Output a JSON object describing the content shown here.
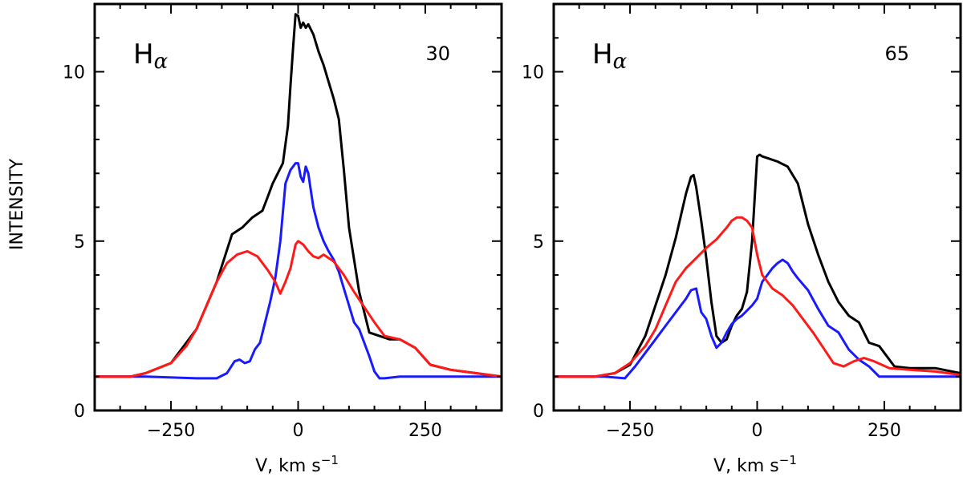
{
  "figure": {
    "ylabel": "INTENSITY",
    "colors": {
      "black": "#000000",
      "blue": "#1a1aff",
      "red": "#ff1a1a"
    }
  },
  "chart_data": [
    {
      "type": "line",
      "title_main": "H",
      "title_sub": "α",
      "corner_label": "30",
      "xlabel_main": "V, km s",
      "xlabel_sup": "−1",
      "xlim": [
        -400,
        400
      ],
      "ylim": [
        0,
        12
      ],
      "xticks": [
        -250,
        0,
        250
      ],
      "xtick_labels": [
        "−250",
        "0",
        "250"
      ],
      "yticks": [
        0,
        5,
        10
      ],
      "ytick_labels": [
        "0",
        "5",
        "10"
      ],
      "series": [
        {
          "name": "black",
          "color": "#000000",
          "x": [
            -400,
            -330,
            -300,
            -250,
            -200,
            -160,
            -130,
            -110,
            -90,
            -70,
            -60,
            -50,
            -40,
            -30,
            -20,
            -15,
            -10,
            -5,
            0,
            5,
            10,
            15,
            20,
            30,
            40,
            50,
            60,
            70,
            80,
            90,
            100,
            120,
            140,
            160,
            180,
            200,
            230,
            260,
            300,
            350,
            400
          ],
          "y": [
            1,
            1,
            1.1,
            1.4,
            2.4,
            3.8,
            5.2,
            5.4,
            5.7,
            5.9,
            6.3,
            6.7,
            7.0,
            7.3,
            8.4,
            9.6,
            10.7,
            11.7,
            11.65,
            11.3,
            11.45,
            11.3,
            11.4,
            11.1,
            10.6,
            10.2,
            9.7,
            9.2,
            8.6,
            7.1,
            5.4,
            3.5,
            2.3,
            2.2,
            2.1,
            2.1,
            1.85,
            1.35,
            1.2,
            1.1,
            1
          ]
        },
        {
          "name": "blue",
          "color": "#1a1aff",
          "x": [
            -400,
            -300,
            -200,
            -160,
            -140,
            -125,
            -115,
            -105,
            -95,
            -85,
            -75,
            -65,
            -55,
            -45,
            -35,
            -25,
            -15,
            -5,
            0,
            5,
            10,
            15,
            20,
            25,
            30,
            40,
            50,
            60,
            70,
            80,
            90,
            100,
            110,
            120,
            130,
            140,
            150,
            160,
            170,
            200,
            300,
            400
          ],
          "y": [
            1,
            1,
            0.95,
            0.95,
            1.1,
            1.45,
            1.5,
            1.4,
            1.45,
            1.8,
            2.0,
            2.6,
            3.2,
            3.9,
            5.0,
            6.7,
            7.1,
            7.3,
            7.3,
            6.9,
            6.75,
            7.2,
            7.0,
            6.5,
            6.0,
            5.4,
            5.0,
            4.7,
            4.45,
            4.1,
            3.6,
            3.1,
            2.6,
            2.4,
            2.0,
            1.6,
            1.15,
            0.95,
            0.95,
            1,
            1,
            1
          ]
        },
        {
          "name": "red",
          "color": "#ff1a1a",
          "x": [
            -400,
            -330,
            -300,
            -250,
            -220,
            -200,
            -180,
            -160,
            -140,
            -120,
            -100,
            -80,
            -60,
            -45,
            -35,
            -25,
            -15,
            -5,
            0,
            10,
            20,
            30,
            40,
            50,
            60,
            70,
            90,
            110,
            130,
            150,
            170,
            200,
            230,
            260,
            300,
            350,
            400
          ],
          "y": [
            1,
            1,
            1.1,
            1.4,
            1.9,
            2.4,
            3.1,
            3.8,
            4.35,
            4.6,
            4.7,
            4.55,
            4.15,
            3.8,
            3.45,
            3.8,
            4.2,
            4.9,
            5.0,
            4.9,
            4.7,
            4.55,
            4.5,
            4.6,
            4.5,
            4.4,
            4.0,
            3.5,
            3.05,
            2.6,
            2.2,
            2.1,
            1.85,
            1.35,
            1.2,
            1.1,
            1
          ]
        }
      ]
    },
    {
      "type": "line",
      "title_main": "H",
      "title_sub": "α",
      "corner_label": "65",
      "xlabel_main": "V, km s",
      "xlabel_sup": "−1",
      "xlim": [
        -400,
        400
      ],
      "ylim": [
        0,
        12
      ],
      "xticks": [
        -250,
        0,
        250
      ],
      "xtick_labels": [
        "−250",
        "0",
        "250"
      ],
      "yticks": [
        0,
        5,
        10
      ],
      "ytick_labels": [
        "0",
        "5",
        "10"
      ],
      "series": [
        {
          "name": "black",
          "color": "#000000",
          "x": [
            -400,
            -320,
            -280,
            -250,
            -220,
            -200,
            -180,
            -160,
            -140,
            -130,
            -125,
            -120,
            -110,
            -100,
            -90,
            -80,
            -70,
            -60,
            -50,
            -40,
            -30,
            -20,
            -10,
            0,
            5,
            10,
            20,
            40,
            60,
            80,
            100,
            120,
            140,
            160,
            180,
            200,
            220,
            240,
            270,
            300,
            350,
            400
          ],
          "y": [
            1,
            1,
            1.1,
            1.35,
            2.2,
            3.1,
            4.0,
            5.1,
            6.4,
            6.9,
            6.95,
            6.6,
            5.6,
            4.5,
            3.2,
            2.2,
            2.0,
            2.1,
            2.5,
            2.8,
            3.0,
            3.5,
            5.0,
            7.5,
            7.55,
            7.5,
            7.45,
            7.35,
            7.2,
            6.7,
            5.5,
            4.6,
            3.8,
            3.2,
            2.8,
            2.6,
            2.0,
            1.9,
            1.3,
            1.25,
            1.25,
            1.1
          ]
        },
        {
          "name": "blue",
          "color": "#1a1aff",
          "x": [
            -400,
            -300,
            -260,
            -240,
            -220,
            -200,
            -180,
            -160,
            -140,
            -130,
            -120,
            -110,
            -100,
            -90,
            -80,
            -70,
            -60,
            -50,
            -40,
            -30,
            -20,
            -10,
            0,
            10,
            20,
            30,
            40,
            50,
            60,
            70,
            80,
            100,
            120,
            140,
            160,
            180,
            200,
            220,
            240,
            260,
            300,
            400
          ],
          "y": [
            1,
            1,
            0.95,
            1.3,
            1.7,
            2.1,
            2.5,
            2.9,
            3.3,
            3.55,
            3.6,
            2.9,
            2.7,
            2.2,
            1.85,
            2.0,
            2.3,
            2.55,
            2.7,
            2.8,
            2.95,
            3.1,
            3.3,
            3.8,
            4.0,
            4.2,
            4.35,
            4.45,
            4.35,
            4.1,
            3.9,
            3.55,
            3.0,
            2.5,
            2.3,
            1.8,
            1.5,
            1.3,
            1.0,
            1.0,
            1.0,
            1.0
          ]
        },
        {
          "name": "red",
          "color": "#ff1a1a",
          "x": [
            -400,
            -320,
            -280,
            -250,
            -220,
            -200,
            -180,
            -160,
            -140,
            -120,
            -100,
            -80,
            -60,
            -50,
            -40,
            -30,
            -20,
            -10,
            0,
            10,
            30,
            50,
            70,
            90,
            110,
            130,
            150,
            170,
            190,
            210,
            230,
            260,
            300,
            350,
            400
          ],
          "y": [
            1,
            1,
            1.1,
            1.4,
            1.9,
            2.4,
            3.1,
            3.8,
            4.2,
            4.5,
            4.8,
            5.05,
            5.4,
            5.6,
            5.7,
            5.7,
            5.6,
            5.4,
            4.6,
            4.0,
            3.6,
            3.4,
            3.1,
            2.7,
            2.3,
            1.85,
            1.4,
            1.3,
            1.45,
            1.55,
            1.45,
            1.25,
            1.2,
            1.15,
            1.05
          ]
        }
      ]
    }
  ]
}
